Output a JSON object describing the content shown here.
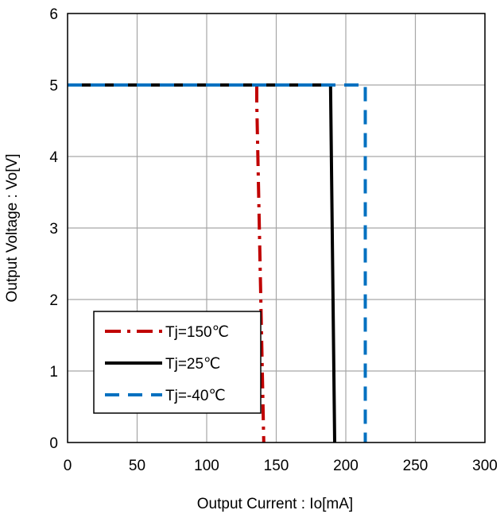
{
  "chart_data": {
    "type": "line",
    "xlabel": "Output Current : Io[mA]",
    "ylabel": "Output Voltage : Vo[V]",
    "xlim": [
      0,
      300
    ],
    "ylim": [
      0,
      6
    ],
    "xticks": [
      0,
      50,
      100,
      150,
      200,
      250,
      300
    ],
    "yticks": [
      0,
      1,
      2,
      3,
      4,
      5,
      6
    ],
    "grid": true,
    "legend_position": "bottom-left",
    "series": [
      {
        "name": "Tj=150℃",
        "color": "#c00000",
        "style": "dash-dot",
        "points": [
          [
            0,
            5.0
          ],
          [
            136,
            5.0
          ],
          [
            136,
            4.75
          ],
          [
            141,
            0.0
          ]
        ]
      },
      {
        "name": "Tj=25℃",
        "color": "#000000",
        "style": "solid",
        "points": [
          [
            0,
            5.0
          ],
          [
            189,
            5.0
          ],
          [
            192,
            0.0
          ]
        ]
      },
      {
        "name": "Tj=-40℃",
        "color": "#0070c0",
        "style": "dash",
        "points": [
          [
            0,
            5.0
          ],
          [
            214,
            5.0
          ],
          [
            214,
            0.0
          ]
        ]
      }
    ]
  }
}
